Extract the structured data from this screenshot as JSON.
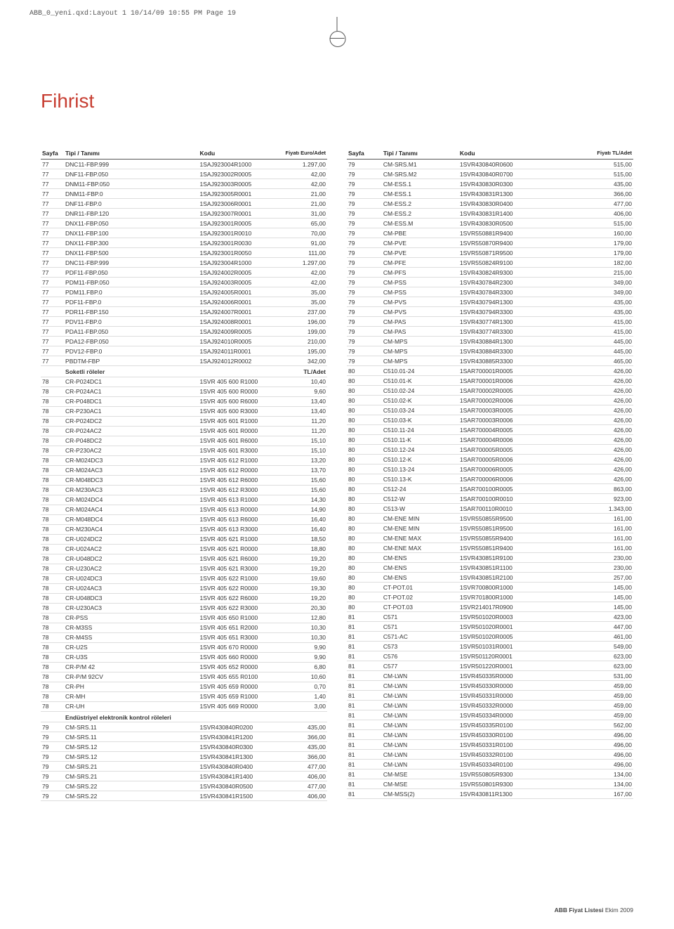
{
  "printHeader": "ABB_0_yeni.qxd:Layout 1  10/14/09  10:55 PM  Page 19",
  "title": "Fihrist",
  "headers": {
    "sayfa": "Sayfa",
    "tip": "Tipi / Tanımı",
    "kodu": "Kodu",
    "fiyatEuro": "Fiyatı\nEuro/Adet",
    "fiyatTL": "Fiyatı\nTL/Adet"
  },
  "footer": {
    "bold": "ABB Fiyat Listesi",
    "rest": " Ekim 2009"
  },
  "left": [
    [
      "77",
      "DNC11-FBP.999",
      "1SAJ923004R1000",
      "1.297,00"
    ],
    [
      "77",
      "DNF11-FBP.050",
      "1SAJ923002R0005",
      "42,00"
    ],
    [
      "77",
      "DNM11-FBP.050",
      "1SAJ923003R0005",
      "42,00"
    ],
    [
      "77",
      "DNM11-FBP.0",
      "1SAJ923005R0001",
      "21,00"
    ],
    [
      "77",
      "DNF11-FBP.0",
      "1SAJ923006R0001",
      "21,00"
    ],
    [
      "77",
      "DNR11-FBP.120",
      "1SAJ923007R0001",
      "31,00"
    ],
    [
      "77",
      "DNX11-FBP.050",
      "1SAJ923001R0005",
      "65,00"
    ],
    [
      "77",
      "DNX11-FBP.100",
      "1SAJ923001R0010",
      "70,00"
    ],
    [
      "77",
      "DNX11-FBP.300",
      "1SAJ923001R0030",
      "91,00"
    ],
    [
      "77",
      "DNX11-FBP.500",
      "1SAJ923001R0050",
      "111,00"
    ],
    [
      "77",
      "DNC11-FBP.999",
      "1SAJ923004R1000",
      "1.297,00"
    ],
    [
      "77",
      "PDF11-FBP.050",
      "1SAJ924002R0005",
      "42,00"
    ],
    [
      "77",
      "PDM11-FBP.050",
      "1SAJ924003R0005",
      "42,00"
    ],
    [
      "77",
      "PDM11.FBP.0",
      "1SAJ924005R0001",
      "35,00"
    ],
    [
      "77",
      "PDF11-FBP.0",
      "1SAJ924006R0001",
      "35,00"
    ],
    [
      "77",
      "PDR11-FBP.150",
      "1SAJ924007R0001",
      "237,00"
    ],
    [
      "77",
      "PDV11-FBP.0",
      "1SAJ924008R0001",
      "196,00"
    ],
    [
      "77",
      "PDA11-FBP.050",
      "1SAJ924009R0005",
      "199,00"
    ],
    [
      "77",
      "PDA12-FBP.050",
      "1SAJ924010R0005",
      "210,00"
    ],
    [
      "77",
      "PDV12-FBP.0",
      "1SAJ924011R0001",
      "195,00"
    ],
    [
      "77",
      "PBDTM-FBP",
      "1SAJ924012R0002",
      "342,00"
    ],
    [
      "",
      "Soketli röleler",
      "",
      "TL/Adet",
      "section"
    ],
    [
      "78",
      "CR-P024DC1",
      "1SVR 405 600 R1000",
      "10,40"
    ],
    [
      "78",
      "CR-P024AC1",
      "1SVR 405 600 R0000",
      "9,60"
    ],
    [
      "78",
      "CR-P048DC1",
      "1SVR 405 600 R6000",
      "13,40"
    ],
    [
      "78",
      "CR-P230AC1",
      "1SVR 405 600 R3000",
      "13,40"
    ],
    [
      "78",
      "CR-P024DC2",
      "1SVR 405 601 R1000",
      "11,20"
    ],
    [
      "78",
      "CR-P024AC2",
      "1SVR 405 601 R0000",
      "11,20"
    ],
    [
      "78",
      "CR-P048DC2",
      "1SVR 405 601 R6000",
      "15,10"
    ],
    [
      "78",
      "CR-P230AC2",
      "1SVR 405 601 R3000",
      "15,10"
    ],
    [
      "78",
      "CR-M024DC3",
      "1SVR 405 612 R1000",
      "13,20"
    ],
    [
      "78",
      "CR-M024AC3",
      "1SVR 405 612 R0000",
      "13,70"
    ],
    [
      "78",
      "CR-M048DC3",
      "1SVR 405 612 R6000",
      "15,60"
    ],
    [
      "78",
      "CR-M230AC3",
      "1SVR 405 612 R3000",
      "15,60"
    ],
    [
      "78",
      "CR-M024DC4",
      "1SVR 405 613 R1000",
      "14,30"
    ],
    [
      "78",
      "CR-M024AC4",
      "1SVR 405 613 R0000",
      "14,90"
    ],
    [
      "78",
      "CR-M048DC4",
      "1SVR 405 613 R6000",
      "16,40"
    ],
    [
      "78",
      "CR-M230AC4",
      "1SVR 405 613 R3000",
      "16,40"
    ],
    [
      "78",
      "CR-U024DC2",
      "1SVR 405 621 R1000",
      "18,50"
    ],
    [
      "78",
      "CR-U024AC2",
      "1SVR 405 621 R0000",
      "18,80"
    ],
    [
      "78",
      "CR-U048DC2",
      "1SVR 405 621 R6000",
      "19,20"
    ],
    [
      "78",
      "CR-U230AC2",
      "1SVR 405 621 R3000",
      "19,20"
    ],
    [
      "78",
      "CR-U024DC3",
      "1SVR 405 622 R1000",
      "19,60"
    ],
    [
      "78",
      "CR-U024AC3",
      "1SVR 405 622 R0000",
      "19,30"
    ],
    [
      "78",
      "CR-U048DC3",
      "1SVR 405 622 R6000",
      "19,20"
    ],
    [
      "78",
      "CR-U230AC3",
      "1SVR 405 622 R3000",
      "20,30"
    ],
    [
      "78",
      "CR-PSS",
      "1SVR 405 650 R1000",
      "12,80"
    ],
    [
      "78",
      "CR-M3SS",
      "1SVR 405 651 R2000",
      "10,30"
    ],
    [
      "78",
      "CR-M4SS",
      "1SVR 405 651 R3000",
      "10,30"
    ],
    [
      "78",
      "CR-U2S",
      "1SVR 405 670 R0000",
      "9,90"
    ],
    [
      "78",
      "CR-U3S",
      "1SVR 405 660 R0000",
      "9,90"
    ],
    [
      "78",
      "CR-P/M 42",
      "1SVR 405 652 R0000",
      "6,80"
    ],
    [
      "78",
      "CR-P/M 92CV",
      "1SVR 405 655 R0100",
      "10,60"
    ],
    [
      "78",
      "CR-PH",
      "1SVR 405 659 R0000",
      "0,70"
    ],
    [
      "78",
      "CR-MH",
      "1SVR 405 659 R1000",
      "1,40"
    ],
    [
      "78",
      "CR-UH",
      "1SVR 405 669 R0000",
      "3,00"
    ],
    [
      "",
      "Endüstriyel elektronik kontrol röleleri",
      "",
      "",
      "section"
    ],
    [
      "79",
      "CM-SRS.11",
      "1SVR430840R0200",
      "435,00"
    ],
    [
      "79",
      "CM-SRS.11",
      "1SVR430841R1200",
      "366,00"
    ],
    [
      "79",
      "CM-SRS.12",
      "1SVR430840R0300",
      "435,00"
    ],
    [
      "79",
      "CM-SRS.12",
      "1SVR430841R1300",
      "366,00"
    ],
    [
      "79",
      "CM-SRS.21",
      "1SVR430840R0400",
      "477,00"
    ],
    [
      "79",
      "CM-SRS.21",
      "1SVR430841R1400",
      "406,00"
    ],
    [
      "79",
      "CM-SRS.22",
      "1SVR430840R0500",
      "477,00"
    ],
    [
      "79",
      "CM-SRS.22",
      "1SVR430841R1500",
      "406,00"
    ]
  ],
  "right": [
    [
      "79",
      "CM-SRS.M1",
      "1SVR430840R0600",
      "515,00"
    ],
    [
      "79",
      "CM-SRS.M2",
      "1SVR430840R0700",
      "515,00"
    ],
    [
      "79",
      "CM-ESS.1",
      "1SVR430830R0300",
      "435,00"
    ],
    [
      "79",
      "CM-ESS.1",
      "1SVR430831R1300",
      "366,00"
    ],
    [
      "79",
      "CM-ESS.2",
      "1SVR430830R0400",
      "477,00"
    ],
    [
      "79",
      "CM-ESS.2",
      "1SVR430831R1400",
      "406,00"
    ],
    [
      "79",
      "CM-ESS.M",
      "1SVR430830R0500",
      "515,00"
    ],
    [
      "79",
      "CM-PBE",
      "1SVR550881R9400",
      "160,00"
    ],
    [
      "79",
      "CM-PVE",
      "1SVR550870R9400",
      "179,00"
    ],
    [
      "79",
      "CM-PVE",
      "1SVR550871R9500",
      "179,00"
    ],
    [
      "79",
      "CM-PFE",
      "1SVR550824R9100",
      "182,00"
    ],
    [
      "79",
      "CM-PFS",
      "1SVR430824R9300",
      "215,00"
    ],
    [
      "79",
      "CM-PSS",
      "1SVR430784R2300",
      "349,00"
    ],
    [
      "79",
      "CM-PSS",
      "1SVR430784R3300",
      "349,00"
    ],
    [
      "79",
      "CM-PVS",
      "1SVR430794R1300",
      "435,00"
    ],
    [
      "79",
      "CM-PVS",
      "1SVR430794R3300",
      "435,00"
    ],
    [
      "79",
      "CM-PAS",
      "1SVR430774R1300",
      "415,00"
    ],
    [
      "79",
      "CM-PAS",
      "1SVR430774R3300",
      "415,00"
    ],
    [
      "79",
      "CM-MPS",
      "1SVR430884R1300",
      "445,00"
    ],
    [
      "79",
      "CM-MPS",
      "1SVR430884R3300",
      "445,00"
    ],
    [
      "79",
      "CM-MPS",
      "1SVR430885R3300",
      "465,00"
    ],
    [
      "80",
      "C510.01-24",
      "1SAR700001R0005",
      "426,00"
    ],
    [
      "80",
      "C510.01-K",
      "1SAR700001R0006",
      "426,00"
    ],
    [
      "80",
      "C510.02-24",
      "1SAR700002R0005",
      "426,00"
    ],
    [
      "80",
      "C510.02-K",
      "1SAR700002R0006",
      "426,00"
    ],
    [
      "80",
      "C510.03-24",
      "1SAR700003R0005",
      "426,00"
    ],
    [
      "80",
      "C510.03-K",
      "1SAR700003R0006",
      "426,00"
    ],
    [
      "80",
      "C510.11-24",
      "1SAR700004R0005",
      "426,00"
    ],
    [
      "80",
      "C510.11-K",
      "1SAR700004R0006",
      "426,00"
    ],
    [
      "80",
      "C510.12-24",
      "1SAR700005R0005",
      "426,00"
    ],
    [
      "80",
      "C510.12-K",
      "1SAR700005R0006",
      "426,00"
    ],
    [
      "80",
      "C510.13-24",
      "1SAR700006R0005",
      "426,00"
    ],
    [
      "80",
      "C510.13-K",
      "1SAR700006R0006",
      "426,00"
    ],
    [
      "80",
      "C512-24",
      "1SAR700100R0005",
      "863,00"
    ],
    [
      "80",
      "C512-W",
      "1SAR700100R0010",
      "923,00"
    ],
    [
      "80",
      "C513-W",
      "1SAR700110R0010",
      "1.343,00"
    ],
    [
      "80",
      "CM-ENE MIN",
      "1SVR550855R9500",
      "161,00"
    ],
    [
      "80",
      "CM-ENE MIN",
      "1SVR550851R9500",
      "161,00"
    ],
    [
      "80",
      "CM-ENE MAX",
      "1SVR550855R9400",
      "161,00"
    ],
    [
      "80",
      "CM-ENE MAX",
      "1SVR550851R9400",
      "161,00"
    ],
    [
      "80",
      "CM-ENS",
      "1SVR430851R9100",
      "230,00"
    ],
    [
      "80",
      "CM-ENS",
      "1SVR430851R1100",
      "230,00"
    ],
    [
      "80",
      "CM-ENS",
      "1SVR430851R2100",
      "257,00"
    ],
    [
      "80",
      "CT-POT.01",
      "1SVR700800R1000",
      "145,00"
    ],
    [
      "80",
      "CT-POT.02",
      "1SVR701800R1000",
      "145,00"
    ],
    [
      "80",
      "CT-POT.03",
      "1SVR214017R0900",
      "145,00"
    ],
    [
      "81",
      "C571",
      "1SVR501020R0003",
      "423,00"
    ],
    [
      "81",
      "C571",
      "1SVR501020R0001",
      "447,00"
    ],
    [
      "81",
      "C571-AC",
      "1SVR501020R0005",
      "461,00"
    ],
    [
      "81",
      "C573",
      "1SVR501031R0001",
      "549,00"
    ],
    [
      "81",
      "C576",
      "1SVR501120R0001",
      "623,00"
    ],
    [
      "81",
      "C577",
      "1SVR501220R0001",
      "623,00"
    ],
    [
      "81",
      "CM-LWN",
      "1SVR450335R0000",
      "531,00"
    ],
    [
      "81",
      "CM-LWN",
      "1SVR450330R0000",
      "459,00"
    ],
    [
      "81",
      "CM-LWN",
      "1SVR450331R0000",
      "459,00"
    ],
    [
      "81",
      "CM-LWN",
      "1SVR450332R0000",
      "459,00"
    ],
    [
      "81",
      "CM-LWN",
      "1SVR450334R0000",
      "459,00"
    ],
    [
      "81",
      "CM-LWN",
      "1SVR450335R0100",
      "562,00"
    ],
    [
      "81",
      "CM-LWN",
      "1SVR450330R0100",
      "496,00"
    ],
    [
      "81",
      "CM-LWN",
      "1SVR450331R0100",
      "496,00"
    ],
    [
      "81",
      "CM-LWN",
      "1SVR450332R0100",
      "496,00"
    ],
    [
      "81",
      "CM-LWN",
      "1SVR450334R0100",
      "496,00"
    ],
    [
      "81",
      "CM-MSE",
      "1SVR550805R9300",
      "134,00"
    ],
    [
      "81",
      "CM-MSE",
      "1SVR550801R9300",
      "134,00"
    ],
    [
      "81",
      "CM-MSS(2)",
      "1SVR430811R1300",
      "167,00"
    ]
  ]
}
